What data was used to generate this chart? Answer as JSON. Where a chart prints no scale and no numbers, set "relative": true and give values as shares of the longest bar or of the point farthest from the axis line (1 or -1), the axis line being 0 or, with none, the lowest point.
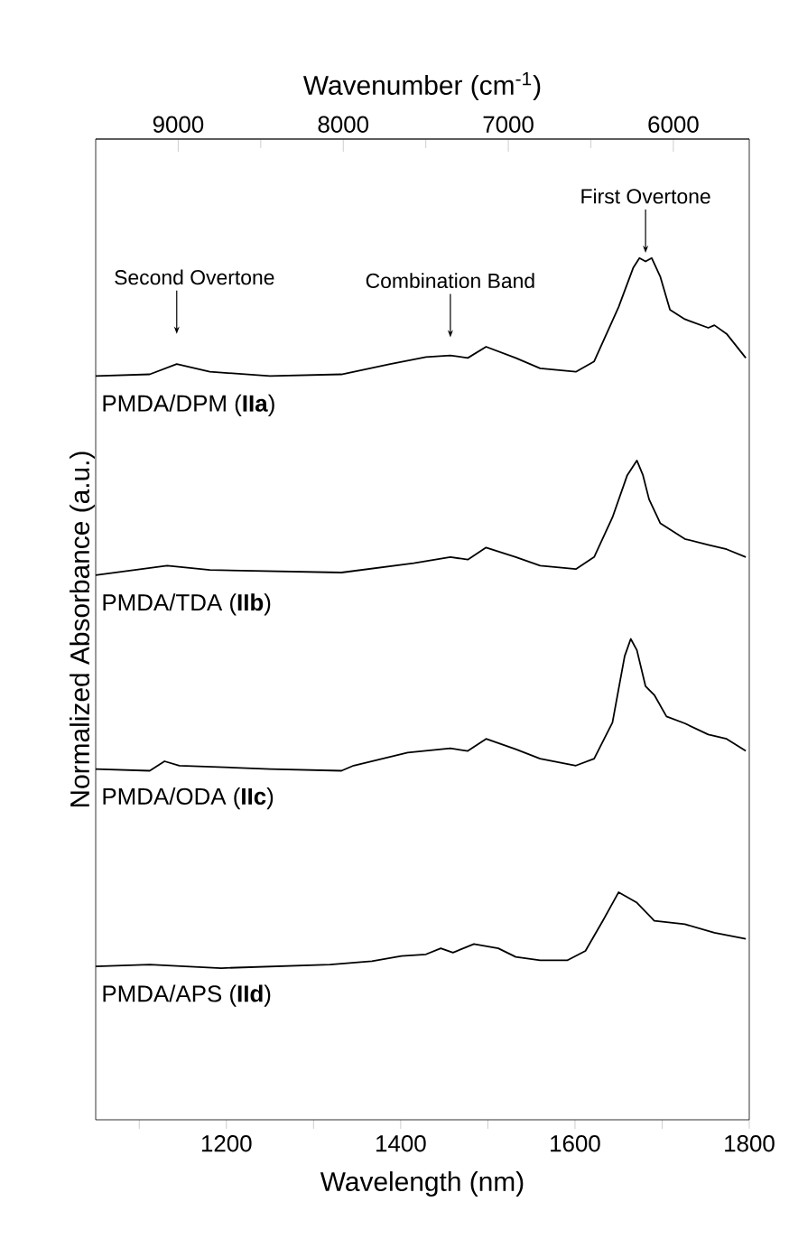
{
  "chart_data": {
    "type": "line",
    "relative": true,
    "xlabel": "Wavelength (nm)",
    "ylabel": "Normalized Absorbance (a.u.)",
    "x2label": "Wavenumber (cm$^{-1}$)",
    "xlim": [
      1050,
      1800
    ],
    "xticks": [
      {
        "value": 1100,
        "label": null
      },
      1200,
      {
        "value": 1300,
        "label": null
      },
      1400,
      {
        "value": 1500,
        "label": null
      },
      1600,
      {
        "value": 1700,
        "label": null
      },
      1800
    ],
    "x2lim": [
      9500,
      5540
    ],
    "x2ticks": [
      9000,
      8000,
      7000,
      6000
    ],
    "line_style": "solid",
    "grid": false,
    "series": [
      {
        "name": "PMDA/DPM (**IIa**)",
        "color": "#000000",
        "x": [
          1050,
          1112,
          1143,
          1181,
          1250,
          1332,
          1388,
          1429,
          1457,
          1477,
          1498,
          1532,
          1560,
          1601,
          1622,
          1650,
          1667,
          1674,
          1681,
          1688,
          1698,
          1709,
          1726,
          1753,
          1760,
          1774,
          1796
        ],
        "values": [
          0.863,
          0.865,
          0.877,
          0.868,
          0.863,
          0.865,
          0.877,
          0.885,
          0.887,
          0.884,
          0.897,
          0.884,
          0.872,
          0.868,
          0.88,
          0.943,
          0.989,
          1.0,
          0.996,
          1.0,
          0.978,
          0.94,
          0.929,
          0.919,
          0.922,
          0.912,
          0.884
        ]
      },
      {
        "name": "PMDA/TDA (**IIb**)",
        "color": "#000000",
        "x": [
          1050,
          1132,
          1181,
          1332,
          1415,
          1457,
          1477,
          1498,
          1532,
          1560,
          1601,
          1622,
          1643,
          1660,
          1671,
          1678,
          1685,
          1698,
          1726,
          1753,
          1774,
          1796
        ],
        "values": [
          0.632,
          0.643,
          0.638,
          0.635,
          0.646,
          0.653,
          0.65,
          0.664,
          0.653,
          0.643,
          0.639,
          0.653,
          0.699,
          0.748,
          0.765,
          0.748,
          0.72,
          0.692,
          0.674,
          0.667,
          0.662,
          0.653
        ]
      },
      {
        "name": "PMDA/ODA (**IIc**)",
        "color": "#000000",
        "x": [
          1050,
          1112,
          1129,
          1146,
          1250,
          1332,
          1346,
          1408,
          1457,
          1477,
          1498,
          1532,
          1560,
          1601,
          1622,
          1643,
          1657,
          1664,
          1671,
          1681,
          1691,
          1705,
          1726,
          1753,
          1774,
          1796
        ],
        "values": [
          0.407,
          0.405,
          0.416,
          0.411,
          0.407,
          0.405,
          0.411,
          0.426,
          0.431,
          0.428,
          0.442,
          0.43,
          0.419,
          0.411,
          0.419,
          0.461,
          0.538,
          0.558,
          0.545,
          0.503,
          0.493,
          0.468,
          0.46,
          0.447,
          0.442,
          0.428
        ]
      },
      {
        "name": "PMDA/APS (**IId**)",
        "color": "#000000",
        "x": [
          1050,
          1112,
          1194,
          1319,
          1367,
          1401,
          1429,
          1446,
          1460,
          1484,
          1512,
          1532,
          1560,
          1591,
          1612,
          1632,
          1650,
          1671,
          1691,
          1726,
          1760,
          1796
        ],
        "values": [
          0.178,
          0.18,
          0.176,
          0.18,
          0.184,
          0.19,
          0.192,
          0.199,
          0.194,
          0.204,
          0.199,
          0.189,
          0.185,
          0.185,
          0.196,
          0.231,
          0.264,
          0.252,
          0.231,
          0.227,
          0.217,
          0.21
        ]
      }
    ],
    "annotations": [
      {
        "text": "Second Overtone",
        "x": 1143,
        "y": 0.912
      },
      {
        "text": "Combination Band",
        "x": 1457,
        "y": 0.908
      },
      {
        "text": "First Overtone",
        "x": 1681,
        "y": 1.006
      }
    ]
  }
}
